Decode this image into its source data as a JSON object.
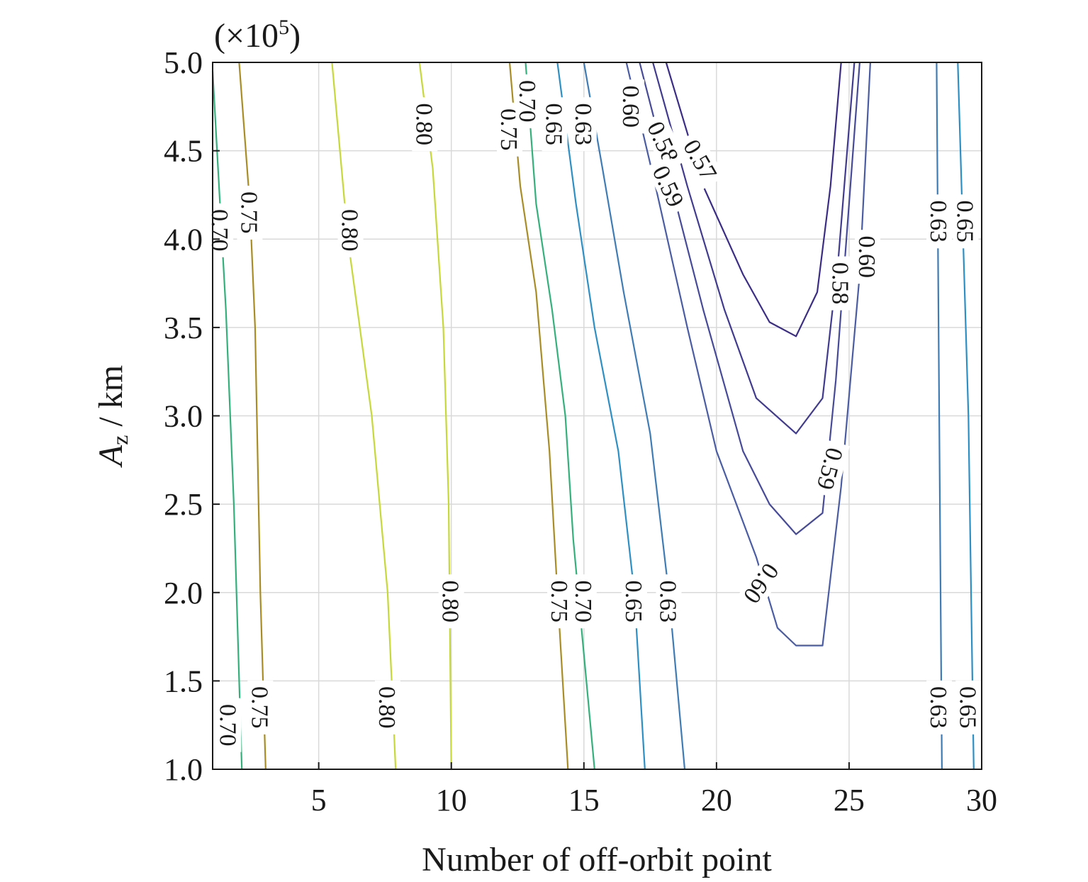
{
  "chart_data": {
    "type": "contour",
    "xlabel": "Number of off-orbit point",
    "ylabel_main": "A",
    "ylabel_sub": "z",
    "ylabel_unit": " / km",
    "y_multiplier_label": "(×10",
    "y_multiplier_exp": "5",
    "y_multiplier_close": ")",
    "xlim": [
      1,
      30
    ],
    "ylim": [
      1.0,
      5.0
    ],
    "x_ticks": [
      5,
      10,
      15,
      20,
      25,
      30
    ],
    "x_tick_labels": [
      "5",
      "10",
      "15",
      "20",
      "25",
      "30"
    ],
    "y_ticks": [
      1.0,
      1.5,
      2.0,
      2.5,
      3.0,
      3.5,
      4.0,
      4.5,
      5.0
    ],
    "y_tick_labels": [
      "1.0",
      "1.5",
      "2.0",
      "2.5",
      "3.0",
      "3.5",
      "4.0",
      "4.5",
      "5.0"
    ],
    "grid": true,
    "colors": {
      "0.57": "#3b2c86",
      "0.58": "#413b8f",
      "0.59": "#464a98",
      "0.60": "#4a5ca3",
      "0.63": "#3f7bb5",
      "0.65": "#2d8fc4",
      "0.70": "#35b07c",
      "0.75": "#a88d26",
      "0.80": "#c6d83a"
    },
    "contours": [
      {
        "level": "0.70",
        "points": [
          [
            1,
            4.95
          ],
          [
            1.5,
            3.6
          ],
          [
            1.8,
            2.5
          ],
          [
            2.1,
            1.0
          ]
        ]
      },
      {
        "level": "0.75",
        "points": [
          [
            2.0,
            5.0
          ],
          [
            2.4,
            4.2
          ],
          [
            2.6,
            3.5
          ],
          [
            2.8,
            2.0
          ],
          [
            3.0,
            1.0
          ]
        ]
      },
      {
        "level": "0.80",
        "points": [
          [
            5.5,
            5.0
          ],
          [
            6.1,
            4.0
          ],
          [
            7.0,
            3.0
          ],
          [
            7.6,
            2.0
          ],
          [
            7.9,
            1.0
          ]
        ]
      },
      {
        "level": "0.80",
        "points": [
          [
            8.8,
            5.0
          ],
          [
            9.3,
            4.4
          ],
          [
            9.7,
            3.5
          ],
          [
            9.9,
            2.5
          ],
          [
            10.0,
            1.0
          ]
        ]
      },
      {
        "level": "0.75",
        "points": [
          [
            12.2,
            5.0
          ],
          [
            12.6,
            4.3
          ],
          [
            13.2,
            3.7
          ],
          [
            13.7,
            2.8
          ],
          [
            14.0,
            2.0
          ],
          [
            14.4,
            1.0
          ]
        ]
      },
      {
        "level": "0.70",
        "points": [
          [
            12.8,
            5.0
          ],
          [
            13.2,
            4.2
          ],
          [
            13.8,
            3.6
          ],
          [
            14.3,
            3.0
          ],
          [
            14.6,
            2.3
          ],
          [
            15.4,
            1.0
          ]
        ]
      },
      {
        "level": "0.65",
        "points": [
          [
            14.0,
            5.0
          ],
          [
            14.7,
            4.2
          ],
          [
            15.4,
            3.5
          ],
          [
            16.3,
            2.8
          ],
          [
            16.9,
            2.0
          ],
          [
            17.3,
            1.0
          ]
        ]
      },
      {
        "level": "0.63",
        "points": [
          [
            15.0,
            5.0
          ],
          [
            15.7,
            4.4
          ],
          [
            16.5,
            3.7
          ],
          [
            17.5,
            2.9
          ],
          [
            18.2,
            2.0
          ],
          [
            18.8,
            1.0
          ]
        ]
      },
      {
        "level": "0.60",
        "points": [
          [
            16.6,
            5.0
          ],
          [
            17.7,
            4.3
          ],
          [
            18.9,
            3.5
          ],
          [
            20.0,
            2.8
          ],
          [
            21.5,
            2.2
          ],
          [
            22.3,
            1.8
          ],
          [
            23.0,
            1.7
          ],
          [
            24.0,
            1.7
          ],
          [
            24.7,
            2.6
          ],
          [
            25.4,
            3.8
          ],
          [
            25.8,
            5.0
          ]
        ]
      },
      {
        "level": "0.59",
        "points": [
          [
            17.1,
            5.0
          ],
          [
            18.3,
            4.3
          ],
          [
            19.5,
            3.6
          ],
          [
            21.0,
            2.8
          ],
          [
            22.0,
            2.5
          ],
          [
            23.0,
            2.33
          ],
          [
            24.0,
            2.45
          ],
          [
            24.5,
            3.2
          ],
          [
            25.0,
            4.2
          ],
          [
            25.4,
            5.0
          ]
        ]
      },
      {
        "level": "0.58",
        "points": [
          [
            17.6,
            5.0
          ],
          [
            18.9,
            4.3
          ],
          [
            20.3,
            3.6
          ],
          [
            21.5,
            3.1
          ],
          [
            23.0,
            2.9
          ],
          [
            24.0,
            3.1
          ],
          [
            24.6,
            3.9
          ],
          [
            25.2,
            5.0
          ]
        ]
      },
      {
        "level": "0.57",
        "points": [
          [
            18.1,
            5.0
          ],
          [
            19.5,
            4.3
          ],
          [
            21.0,
            3.8
          ],
          [
            22.0,
            3.53
          ],
          [
            23.0,
            3.45
          ],
          [
            23.8,
            3.7
          ],
          [
            24.3,
            4.3
          ],
          [
            24.7,
            5.0
          ]
        ]
      },
      {
        "level": "0.63",
        "points": [
          [
            28.3,
            5.0
          ],
          [
            28.4,
            3.0
          ],
          [
            28.5,
            1.0
          ]
        ]
      },
      {
        "level": "0.65",
        "points": [
          [
            29.1,
            5.0
          ],
          [
            29.5,
            3.0
          ],
          [
            29.7,
            1.0
          ]
        ]
      }
    ],
    "contour_labels": [
      {
        "text": "0.70",
        "x": 1.3,
        "y": 4.05,
        "rot": 90
      },
      {
        "text": "0.75",
        "x": 2.4,
        "y": 4.15,
        "rot": 90
      },
      {
        "text": "0.80",
        "x": 6.2,
        "y": 4.05,
        "rot": 90
      },
      {
        "text": "0.80",
        "x": 9.0,
        "y": 4.65,
        "rot": 90
      },
      {
        "text": "0.75",
        "x": 12.2,
        "y": 4.62,
        "rot": 90
      },
      {
        "text": "0.70",
        "x": 12.9,
        "y": 4.78,
        "rot": 90
      },
      {
        "text": "0.65",
        "x": 13.9,
        "y": 4.65,
        "rot": 90
      },
      {
        "text": "0.63",
        "x": 15.0,
        "y": 4.65,
        "rot": 90
      },
      {
        "text": "0.60",
        "x": 16.8,
        "y": 4.75,
        "rot": 90
      },
      {
        "text": "0.58",
        "x": 18.0,
        "y": 4.55,
        "rot": 65
      },
      {
        "text": "0.59",
        "x": 18.2,
        "y": 4.3,
        "rot": 65
      },
      {
        "text": "0.57",
        "x": 19.4,
        "y": 4.45,
        "rot": 60
      },
      {
        "text": "0.58",
        "x": 24.7,
        "y": 3.75,
        "rot": 90
      },
      {
        "text": "0.60",
        "x": 25.7,
        "y": 3.9,
        "rot": 90
      },
      {
        "text": "0.59",
        "x": 24.3,
        "y": 2.7,
        "rot": 105
      },
      {
        "text": "0.60",
        "x": 21.7,
        "y": 2.05,
        "rot": 125
      },
      {
        "text": "0.80",
        "x": 10.0,
        "y": 1.95,
        "rot": 90
      },
      {
        "text": "0.75",
        "x": 14.1,
        "y": 1.95,
        "rot": 90
      },
      {
        "text": "0.70",
        "x": 15.0,
        "y": 1.95,
        "rot": 90
      },
      {
        "text": "0.65",
        "x": 16.9,
        "y": 1.95,
        "rot": 90
      },
      {
        "text": "0.63",
        "x": 18.2,
        "y": 1.95,
        "rot": 90
      },
      {
        "text": "0.70",
        "x": 1.6,
        "y": 1.25,
        "rot": 90
      },
      {
        "text": "0.75",
        "x": 2.8,
        "y": 1.35,
        "rot": 90
      },
      {
        "text": "0.80",
        "x": 7.6,
        "y": 1.35,
        "rot": 90
      },
      {
        "text": "0.63",
        "x": 28.4,
        "y": 4.1,
        "rot": 90
      },
      {
        "text": "0.65",
        "x": 29.4,
        "y": 4.1,
        "rot": 90
      },
      {
        "text": "0.63",
        "x": 28.4,
        "y": 1.35,
        "rot": 90
      },
      {
        "text": "0.65",
        "x": 29.5,
        "y": 1.35,
        "rot": 90
      }
    ]
  }
}
